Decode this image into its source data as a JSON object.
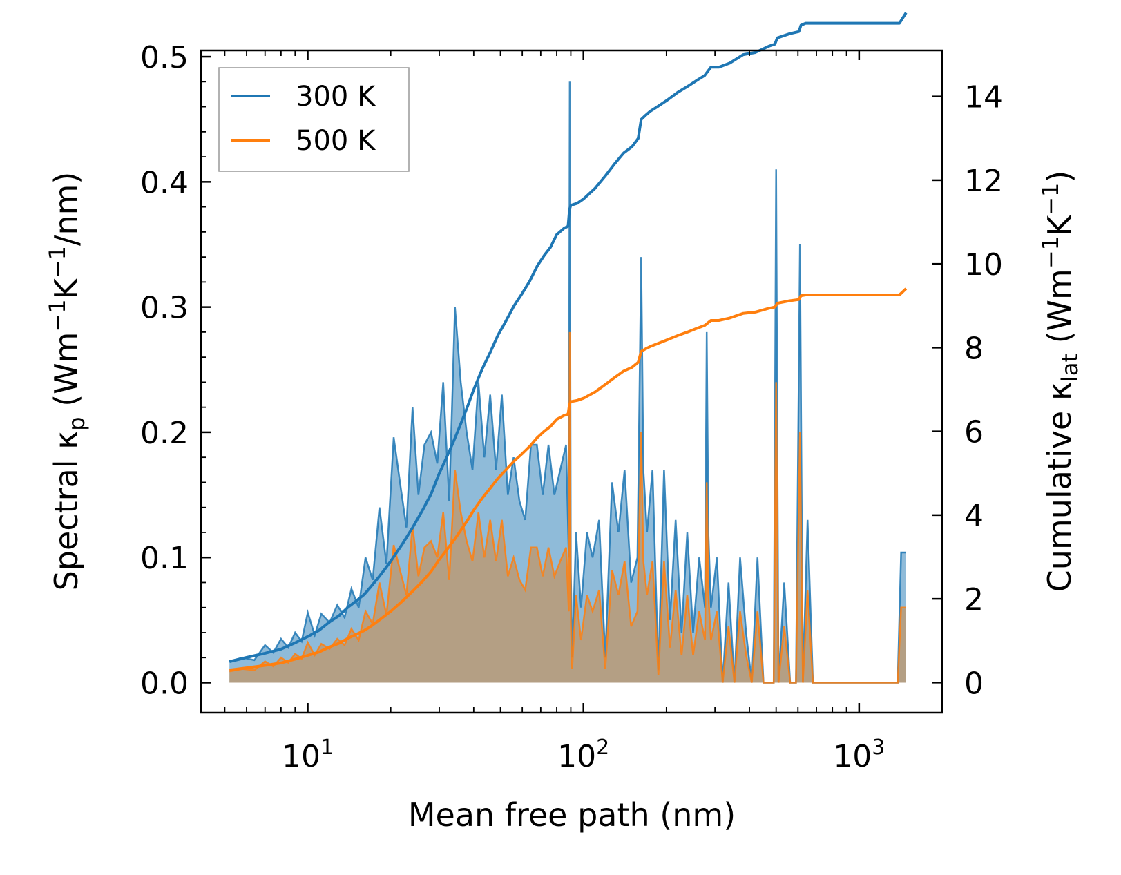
{
  "chart_data": {
    "type": "line",
    "x_scale": "log",
    "xlim": [
      4.1,
      2000
    ],
    "xlabel": "Mean free path (nm)",
    "x_ticks": [
      {
        "value": 10,
        "base": "10",
        "exp": "1"
      },
      {
        "value": 100,
        "base": "10",
        "exp": "2"
      },
      {
        "value": 1000,
        "base": "10",
        "exp": "3"
      }
    ],
    "left_axis": {
      "label_main": "Spectral κ",
      "label_sub": "p",
      "label_unit_open": " (Wm",
      "label_unit_exp1": "−1",
      "label_unit_mid": "K",
      "label_unit_exp2": "−1",
      "label_unit_close": "/nm)",
      "ylim": [
        -0.024,
        0.505
      ],
      "ticks": [
        "0.0",
        "0.1",
        "0.2",
        "0.3",
        "0.4",
        "0.5"
      ]
    },
    "right_axis": {
      "label_main": "Cumulative κ",
      "label_sub": "lat",
      "label_unit_open": " (Wm",
      "label_unit_exp1": "−1",
      "label_unit_mid": "K",
      "label_unit_exp2": "−1",
      "label_unit_close": ")",
      "ylim": [
        -0.72,
        15.1
      ],
      "ticks": [
        "0",
        "2",
        "4",
        "6",
        "8",
        "10",
        "12",
        "14"
      ]
    },
    "legend": {
      "position": "top-left",
      "entries": [
        {
          "label": "300 K",
          "color": "#1f77b4"
        },
        {
          "label": "500 K",
          "color": "#ff7f0e"
        }
      ]
    },
    "series": [
      {
        "name": "300 K",
        "color": "#1f77b4",
        "spectral_x": [
          5.2,
          5.8,
          6.4,
          7,
          7.5,
          8,
          8.5,
          9,
          9.5,
          10,
          10.6,
          11.2,
          12,
          12.8,
          13.6,
          14.4,
          15.3,
          16.2,
          17.2,
          18.2,
          19.3,
          20.5,
          21.6,
          22.8,
          24,
          25.2,
          26.5,
          28,
          29.5,
          31,
          32.6,
          34.2,
          35.9,
          37.7,
          39.6,
          41.6,
          43.7,
          45.9,
          48.2,
          50.6,
          53.2,
          55.8,
          58.6,
          61.5,
          64.5,
          67.8,
          71.2,
          74.7,
          78.5,
          82.4,
          86.5,
          88.5,
          89.2,
          90,
          91,
          94,
          98,
          103,
          108,
          114,
          120,
          127,
          134,
          141,
          149,
          157,
          162,
          165,
          170,
          178,
          187,
          196,
          206,
          216,
          227,
          238,
          250,
          263,
          276,
          280,
          284,
          290,
          305,
          320,
          336,
          353,
          370,
          389,
          408,
          428,
          450,
          472,
          490,
          500,
          510,
          535,
          562,
          590,
          610,
          625,
          650,
          680,
          700,
          800,
          1000,
          1200,
          1380,
          1420,
          1480
        ],
        "spectral_y": [
          0.017,
          0.02,
          0.018,
          0.03,
          0.024,
          0.035,
          0.028,
          0.04,
          0.033,
          0.056,
          0.038,
          0.055,
          0.048,
          0.062,
          0.052,
          0.075,
          0.06,
          0.1,
          0.082,
          0.14,
          0.095,
          0.196,
          0.16,
          0.124,
          0.22,
          0.15,
          0.19,
          0.2,
          0.175,
          0.24,
          0.145,
          0.3,
          0.24,
          0.2,
          0.17,
          0.24,
          0.18,
          0.23,
          0.17,
          0.23,
          0.15,
          0.18,
          0.145,
          0.13,
          0.19,
          0.19,
          0.15,
          0.19,
          0.15,
          0.17,
          0.19,
          0.1,
          0.48,
          0.09,
          0.02,
          0.12,
          0.06,
          0.12,
          0.1,
          0.13,
          0.02,
          0.16,
          0.12,
          0.17,
          0.08,
          0.1,
          0.34,
          0.17,
          0.12,
          0.17,
          0.01,
          0.17,
          0.05,
          0.13,
          0.04,
          0.12,
          0.04,
          0.1,
          0.06,
          0.28,
          0.12,
          0.06,
          0.1,
          0.0,
          0.08,
          0.0,
          0.1,
          0.04,
          0.0,
          0.1,
          0.0,
          0.0,
          0.0,
          0.41,
          0.0,
          0.08,
          0.0,
          0.0,
          0.35,
          0.0,
          0.13,
          0.0,
          0.0,
          0.0,
          0.0,
          0.0,
          0.0,
          0.104,
          0.104
        ],
        "cumulative_x": [
          5.2,
          6,
          7,
          8,
          9,
          10,
          11,
          12,
          13,
          14,
          15,
          16,
          17,
          18,
          19,
          20,
          22,
          24,
          26,
          28,
          30,
          32,
          34,
          36,
          38,
          40,
          43,
          46,
          49,
          52,
          56,
          60,
          64,
          68,
          72,
          76,
          80,
          85,
          88,
          89,
          90,
          95,
          100,
          110,
          120,
          130,
          140,
          150,
          158,
          162,
          168,
          175,
          185,
          200,
          220,
          240,
          260,
          275,
          290,
          310,
          340,
          380,
          420,
          470,
          495,
          505,
          560,
          605,
          615,
          640,
          700,
          800,
          1000,
          1200,
          1400,
          1480
        ],
        "cumulative_y": [
          0.5,
          0.6,
          0.7,
          0.8,
          0.95,
          1.1,
          1.25,
          1.45,
          1.6,
          1.8,
          1.95,
          2.1,
          2.3,
          2.5,
          2.7,
          2.9,
          3.3,
          3.7,
          4.1,
          4.5,
          5.0,
          5.4,
          5.8,
          6.2,
          6.6,
          7.0,
          7.5,
          7.9,
          8.3,
          8.6,
          9.0,
          9.3,
          9.6,
          9.95,
          10.2,
          10.4,
          10.7,
          10.85,
          10.9,
          11.3,
          11.4,
          11.45,
          11.55,
          11.8,
          12.1,
          12.4,
          12.65,
          12.8,
          13.0,
          13.45,
          13.55,
          13.65,
          13.75,
          13.9,
          14.1,
          14.25,
          14.4,
          14.5,
          14.7,
          14.7,
          14.8,
          15.0,
          15.05,
          15.2,
          15.25,
          15.4,
          15.5,
          15.55,
          15.7,
          15.75,
          15.75,
          15.75,
          15.75,
          15.75,
          15.75,
          16.0
        ]
      },
      {
        "name": "500 K",
        "color": "#ff7f0e",
        "spectral_x": [
          5.2,
          5.8,
          6.4,
          7,
          7.5,
          8,
          8.5,
          9,
          9.5,
          10,
          10.6,
          11.2,
          12,
          12.8,
          13.6,
          14.4,
          15.3,
          16.2,
          17.2,
          18.2,
          19.3,
          20.5,
          21.6,
          22.8,
          24,
          25.2,
          26.5,
          28,
          29.5,
          31,
          32.6,
          34.2,
          35.9,
          37.7,
          39.6,
          41.6,
          43.7,
          45.9,
          48.2,
          50.6,
          53.2,
          55.8,
          58.6,
          61.5,
          64.5,
          67.8,
          71.2,
          74.7,
          78.5,
          82.4,
          86.5,
          88.5,
          89.2,
          90,
          91,
          94,
          98,
          103,
          108,
          114,
          120,
          127,
          134,
          141,
          149,
          157,
          162,
          165,
          170,
          178,
          187,
          196,
          206,
          216,
          227,
          238,
          250,
          263,
          276,
          280,
          284,
          290,
          305,
          320,
          336,
          353,
          370,
          389,
          408,
          428,
          450,
          472,
          490,
          500,
          510,
          535,
          562,
          590,
          610,
          625,
          650,
          680,
          700,
          800,
          1000,
          1200,
          1380,
          1420,
          1480
        ],
        "spectral_y": [
          0.009,
          0.011,
          0.01,
          0.017,
          0.013,
          0.02,
          0.016,
          0.023,
          0.019,
          0.032,
          0.022,
          0.031,
          0.027,
          0.035,
          0.03,
          0.043,
          0.034,
          0.057,
          0.047,
          0.08,
          0.054,
          0.11,
          0.09,
          0.07,
          0.125,
          0.085,
          0.108,
          0.113,
          0.1,
          0.136,
          0.082,
          0.17,
          0.136,
          0.113,
          0.097,
          0.136,
          0.1,
          0.13,
          0.097,
          0.13,
          0.085,
          0.1,
          0.082,
          0.074,
          0.108,
          0.108,
          0.085,
          0.108,
          0.085,
          0.097,
          0.108,
          0.057,
          0.28,
          0.05,
          0.011,
          0.07,
          0.034,
          0.07,
          0.057,
          0.074,
          0.011,
          0.09,
          0.07,
          0.097,
          0.045,
          0.057,
          0.2,
          0.097,
          0.07,
          0.097,
          0.006,
          0.097,
          0.028,
          0.074,
          0.022,
          0.07,
          0.022,
          0.057,
          0.034,
          0.16,
          0.07,
          0.034,
          0.057,
          0.0,
          0.045,
          0.0,
          0.057,
          0.022,
          0.0,
          0.057,
          0.0,
          0.0,
          0.0,
          0.24,
          0.0,
          0.045,
          0.0,
          0.0,
          0.2,
          0.0,
          0.074,
          0.0,
          0.0,
          0.0,
          0.0,
          0.0,
          0.0,
          0.06,
          0.06
        ],
        "cumulative_x": [
          5.2,
          6,
          7,
          8,
          9,
          10,
          11,
          12,
          13,
          14,
          15,
          16,
          17,
          18,
          19,
          20,
          22,
          24,
          26,
          28,
          30,
          32,
          34,
          36,
          38,
          40,
          43,
          46,
          49,
          52,
          56,
          60,
          64,
          68,
          72,
          76,
          80,
          85,
          88,
          89,
          90,
          95,
          100,
          110,
          120,
          130,
          140,
          150,
          158,
          162,
          168,
          175,
          185,
          200,
          220,
          240,
          260,
          275,
          290,
          310,
          340,
          380,
          420,
          470,
          495,
          505,
          560,
          605,
          615,
          640,
          700,
          800,
          1000,
          1200,
          1400,
          1480
        ],
        "cumulative_y": [
          0.3,
          0.35,
          0.41,
          0.47,
          0.56,
          0.65,
          0.73,
          0.85,
          0.94,
          1.06,
          1.15,
          1.24,
          1.35,
          1.47,
          1.59,
          1.7,
          1.94,
          2.18,
          2.41,
          2.65,
          2.94,
          3.18,
          3.41,
          3.65,
          3.88,
          4.12,
          4.41,
          4.65,
          4.88,
          5.06,
          5.29,
          5.47,
          5.65,
          5.85,
          6.0,
          6.12,
          6.29,
          6.38,
          6.41,
          6.65,
          6.71,
          6.74,
          6.79,
          6.94,
          7.12,
          7.29,
          7.44,
          7.53,
          7.65,
          7.91,
          7.97,
          8.03,
          8.09,
          8.18,
          8.29,
          8.38,
          8.47,
          8.53,
          8.65,
          8.65,
          8.71,
          8.82,
          8.85,
          8.94,
          8.97,
          9.06,
          9.12,
          9.15,
          9.24,
          9.26,
          9.26,
          9.26,
          9.26,
          9.26,
          9.26,
          9.41
        ]
      }
    ]
  }
}
